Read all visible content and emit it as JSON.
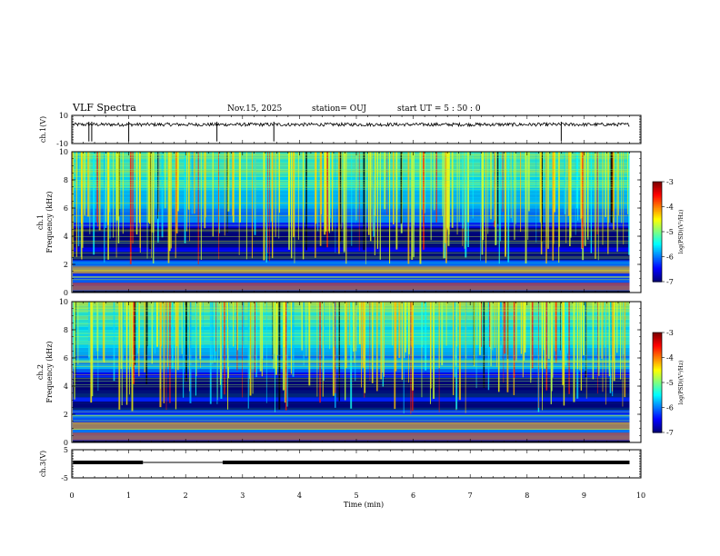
{
  "header": {
    "title": "VLF Spectra",
    "date": "Nov.15, 2025",
    "station": "station= OUJ",
    "start_time": "start  UT  =   5  : 50 : 0"
  },
  "chart_data": [
    {
      "type": "line",
      "panel": "ch1-waveform",
      "ylabel": "ch.1(V)",
      "ylim": [
        -10,
        10
      ],
      "ytick_labels": [
        "10",
        "-10"
      ],
      "baseline_value": 3.5,
      "noise_amplitude": 1.2,
      "spike_times_min": [
        0.3,
        0.35,
        1.0,
        2.55,
        3.55,
        8.6
      ]
    },
    {
      "type": "heatmap",
      "panel": "ch1-spectrogram",
      "ylabel": "ch.1\nFrequency (kHz)",
      "ylim": [
        0,
        10
      ],
      "ytick_labels": [
        "0",
        "2",
        "4",
        "6",
        "8",
        "10"
      ],
      "colorbar": {
        "label": "log(PSD)(V²/Hz)",
        "tick_labels": [
          "-3",
          "-4",
          "-5",
          "-6",
          "-7"
        ],
        "range": [
          -7,
          -3
        ]
      }
    },
    {
      "type": "heatmap",
      "panel": "ch2-spectrogram",
      "ylabel": "ch.2\nFrequency (kHz)",
      "ylim": [
        0,
        10
      ],
      "ytick_labels": [
        "0",
        "2",
        "4",
        "6",
        "8",
        "10"
      ],
      "colorbar": {
        "label": "log(PSD)(V²/Hz)",
        "tick_labels": [
          "-3",
          "-4",
          "-5",
          "-6",
          "-7"
        ],
        "range": [
          -7,
          -3
        ]
      }
    },
    {
      "type": "line",
      "panel": "ch3-level",
      "ylabel": "ch.3(V)",
      "ylim": [
        -5,
        5
      ],
      "ytick_labels": [
        "5",
        "-5"
      ],
      "level_value": 0.5,
      "gap_start_min": 1.25,
      "gap_end_min": 2.65
    }
  ],
  "x_axis": {
    "xlabel": "Time  (min)",
    "xlim": [
      0,
      10
    ],
    "tick_labels": [
      "0",
      "1",
      "2",
      "3",
      "4",
      "5",
      "6",
      "7",
      "8",
      "9",
      "10"
    ]
  }
}
